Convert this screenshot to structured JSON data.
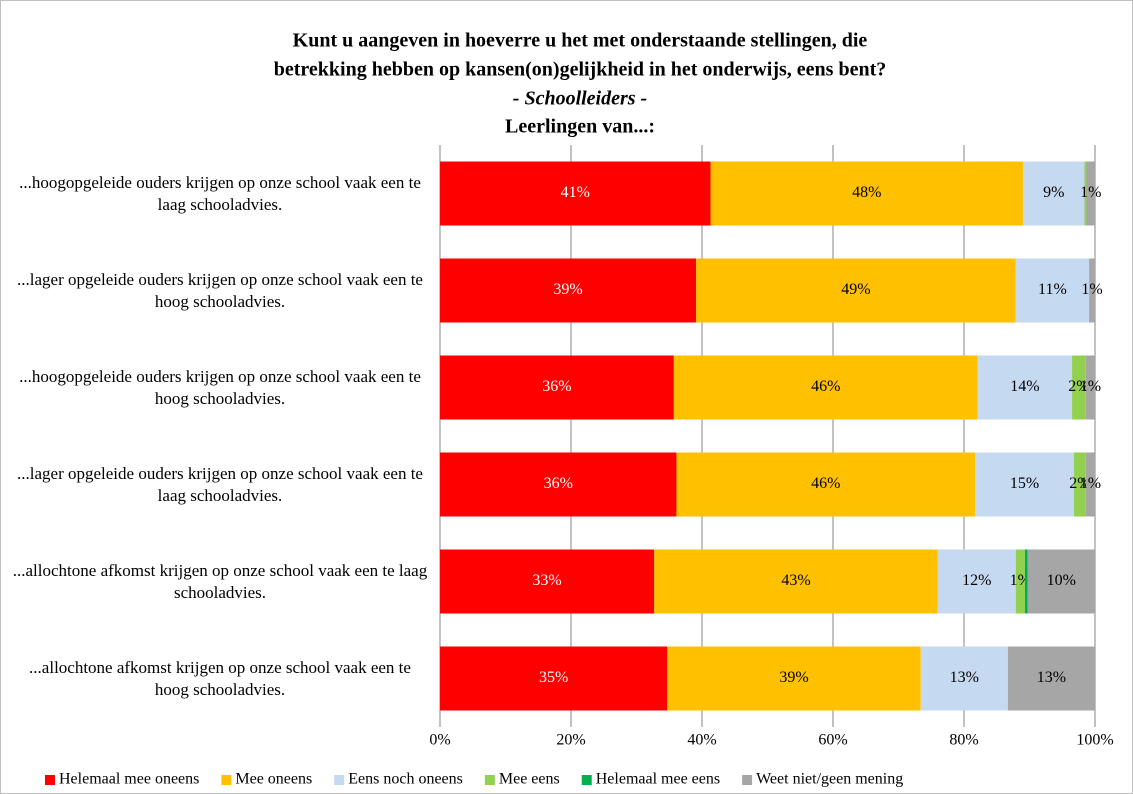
{
  "chart_data": {
    "type": "stacked-bar-horizontal",
    "title": [
      "Kunt u aangeven in hoeverre u het met onderstaande stellingen, die",
      "betrekking hebben op kansen(on)gelijkheid in het onderwijs, eens bent?"
    ],
    "subtitle": "- Schoolleiders -",
    "group_label": "Leerlingen van...:",
    "categories": [
      "...hoogopgeleide ouders krijgen op onze school vaak een te laag schooladvies.",
      "...lager opgeleide ouders krijgen op onze school vaak een te hoog schooladvies.",
      "...hoogopgeleide ouders krijgen op onze school vaak een te hoog schooladvies.",
      "...lager opgeleide ouders krijgen op onze school vaak een te laag schooladvies.",
      "...allochtone afkomst krijgen op onze school vaak een te laag schooladvies.",
      "...allochtone afkomst krijgen op onze school vaak een te hoog schooladvies."
    ],
    "series": [
      {
        "name": "Helemaal mee oneens",
        "color": "#ff0000",
        "values": [
          41.3,
          39.1,
          35.7,
          36.1,
          32.7,
          34.7
        ],
        "value_labels": [
          "41%",
          "39%",
          "36%",
          "36%",
          "33%",
          "35%"
        ]
      },
      {
        "name": "Mee oneens",
        "color": "#ffc000",
        "values": [
          47.7,
          48.8,
          46.4,
          45.6,
          43.3,
          38.7
        ],
        "value_labels": [
          "48%",
          "49%",
          "46%",
          "46%",
          "43%",
          "39%"
        ]
      },
      {
        "name": "Eens noch oneens",
        "color": "#c5d9f1",
        "values": [
          9.4,
          11.2,
          14.4,
          15.1,
          11.9,
          13.3
        ],
        "value_labels": [
          "9%",
          "11%",
          "14%",
          "15%",
          "12%",
          "13%"
        ]
      },
      {
        "name": "Mee eens",
        "color": "#92d050",
        "values": [
          0.3,
          0,
          2.1,
          1.8,
          1.4,
          0
        ],
        "value_labels": [
          null,
          null,
          "2%",
          "2%",
          "1%",
          null
        ]
      },
      {
        "name": "Helemaal mee eens",
        "color": "#00b050",
        "values": [
          0,
          0,
          0,
          0,
          0.4,
          0
        ],
        "value_labels": [
          null,
          null,
          null,
          null,
          null,
          null
        ]
      },
      {
        "name": "Weet niet/geen mening",
        "color": "#a6a6a6",
        "values": [
          1.3,
          0.9,
          1.4,
          1.4,
          10.3,
          13.3
        ],
        "value_labels": [
          "1%",
          "1%",
          "1%",
          "1%",
          "10%",
          "13%"
        ]
      }
    ],
    "xlim": [
      0,
      100
    ],
    "xticks": [
      {
        "value": 0,
        "label": "0%"
      },
      {
        "value": 20,
        "label": "20%"
      },
      {
        "value": 40,
        "label": "40%"
      },
      {
        "value": 60,
        "label": "60%"
      },
      {
        "value": 80,
        "label": "80%"
      },
      {
        "value": 100,
        "label": "100%"
      }
    ],
    "grid": true,
    "legend": "bottom"
  }
}
